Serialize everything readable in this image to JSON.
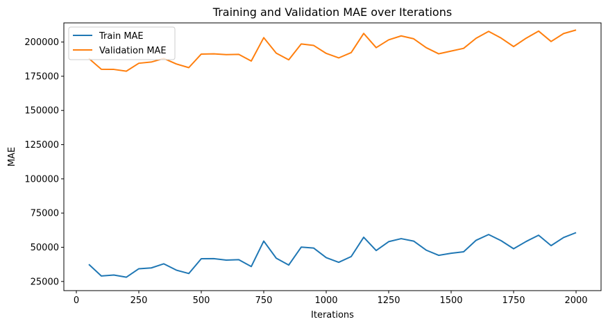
{
  "chart_data": {
    "type": "line",
    "title": "Training and Validation MAE over Iterations",
    "xlabel": "Iterations",
    "ylabel": "MAE",
    "xlim": [
      -50,
      2100
    ],
    "ylim": [
      18300,
      214000
    ],
    "xticks": [
      0,
      250,
      500,
      750,
      1000,
      1250,
      1500,
      1750,
      2000
    ],
    "yticks": [
      25000,
      50000,
      75000,
      100000,
      125000,
      150000,
      175000,
      200000
    ],
    "grid": false,
    "legend_position": "top-left",
    "x": [
      50,
      100,
      150,
      200,
      250,
      300,
      350,
      400,
      450,
      500,
      550,
      600,
      650,
      700,
      750,
      800,
      850,
      900,
      950,
      1000,
      1050,
      1100,
      1150,
      1200,
      1250,
      1300,
      1350,
      1400,
      1450,
      1500,
      1550,
      1600,
      1650,
      1700,
      1750,
      1800,
      1850,
      1900,
      1950,
      2000
    ],
    "series": [
      {
        "name": "Train MAE",
        "color": "#1f77b4",
        "values": [
          37500,
          29000,
          29700,
          28100,
          34300,
          34900,
          37900,
          33300,
          30800,
          41600,
          41700,
          40600,
          40900,
          35900,
          54500,
          42000,
          37000,
          50100,
          49400,
          42400,
          39000,
          43200,
          57300,
          47600,
          54100,
          56300,
          54500,
          47900,
          44100,
          45600,
          46700,
          55100,
          59300,
          54800,
          48900,
          54200,
          58800,
          51200,
          57100,
          60700
        ]
      },
      {
        "name": "Validation MAE",
        "color": "#ff7f0e",
        "values": [
          188000,
          180100,
          180000,
          178700,
          184500,
          185400,
          188000,
          184000,
          181300,
          191200,
          191400,
          190800,
          191000,
          186100,
          203200,
          191900,
          187000,
          198600,
          197500,
          191700,
          188400,
          192300,
          206300,
          195900,
          201600,
          204500,
          202400,
          195900,
          191400,
          193400,
          195400,
          202800,
          207800,
          202900,
          196700,
          202800,
          208000,
          200400,
          206200,
          208800
        ]
      }
    ]
  }
}
